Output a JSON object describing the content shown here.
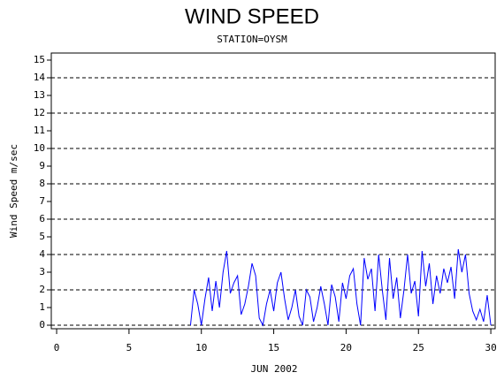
{
  "chart_data": {
    "type": "line",
    "title": "WIND SPEED",
    "subtitle": "STATION=OYSM",
    "x_label": "JUN 2002",
    "y_label": "Wind Speed m/sec",
    "x": [
      9.25,
      9.5,
      9.75,
      10,
      10.25,
      10.5,
      10.75,
      11,
      11.25,
      11.5,
      11.75,
      12,
      12.25,
      12.5,
      12.75,
      13,
      13.25,
      13.5,
      13.75,
      14,
      14.25,
      14.5,
      14.75,
      15,
      15.25,
      15.5,
      15.75,
      16,
      16.25,
      16.5,
      16.75,
      17,
      17.25,
      17.5,
      17.75,
      18,
      18.25,
      18.5,
      18.75,
      19,
      19.25,
      19.5,
      19.75,
      20,
      20.25,
      20.5,
      20.75,
      21,
      21.25,
      21.5,
      21.75,
      22,
      22.25,
      22.5,
      22.75,
      23,
      23.25,
      23.5,
      23.75,
      24,
      24.25,
      24.5,
      24.75,
      25,
      25.25,
      25.5,
      25.75,
      26,
      26.25,
      26.5,
      26.75,
      27,
      27.25,
      27.5,
      27.75,
      28,
      28.25,
      28.5,
      28.75,
      29,
      29.25,
      29.5,
      29.75,
      30
    ],
    "series": [
      {
        "color": "#0000ff",
        "values": [
          0,
          2.0,
          1.2,
          0,
          1.5,
          2.7,
          0.8,
          2.5,
          1.0,
          3.0,
          4.2,
          1.8,
          2.4,
          2.8,
          0.6,
          1.2,
          2.2,
          3.5,
          2.8,
          0.4,
          0,
          1.2,
          2.0,
          0.8,
          2.4,
          3.0,
          1.5,
          0.3,
          1.0,
          2.0,
          0.5,
          0,
          2.0,
          1.6,
          0.2,
          1.0,
          2.2,
          1.2,
          0,
          2.3,
          1.6,
          0.2,
          2.4,
          1.5,
          2.8,
          3.2,
          1.2,
          0,
          3.8,
          2.6,
          3.2,
          0.8,
          4.0,
          2.0,
          0.3,
          3.8,
          1.5,
          2.7,
          0.4,
          2.0,
          4.0,
          1.8,
          2.5,
          0.5,
          4.2,
          2.2,
          3.5,
          1.2,
          2.8,
          1.8,
          3.2,
          2.4,
          3.3,
          1.5,
          4.3,
          3.0,
          4.0,
          1.8,
          0.8,
          0.3,
          0.9,
          0.2,
          1.7,
          0
        ]
      }
    ],
    "xlim": [
      -0.37,
      30.3
    ],
    "xticks": [
      0,
      5,
      10,
      15,
      20,
      25,
      30
    ],
    "ylim": [
      -0.2,
      15.4
    ],
    "yticks": [
      0,
      1,
      2,
      3,
      4,
      5,
      6,
      7,
      8,
      9,
      10,
      11,
      12,
      13,
      14,
      15
    ],
    "grid_lines": [
      0,
      2,
      4,
      6,
      8,
      10,
      12,
      14
    ]
  }
}
